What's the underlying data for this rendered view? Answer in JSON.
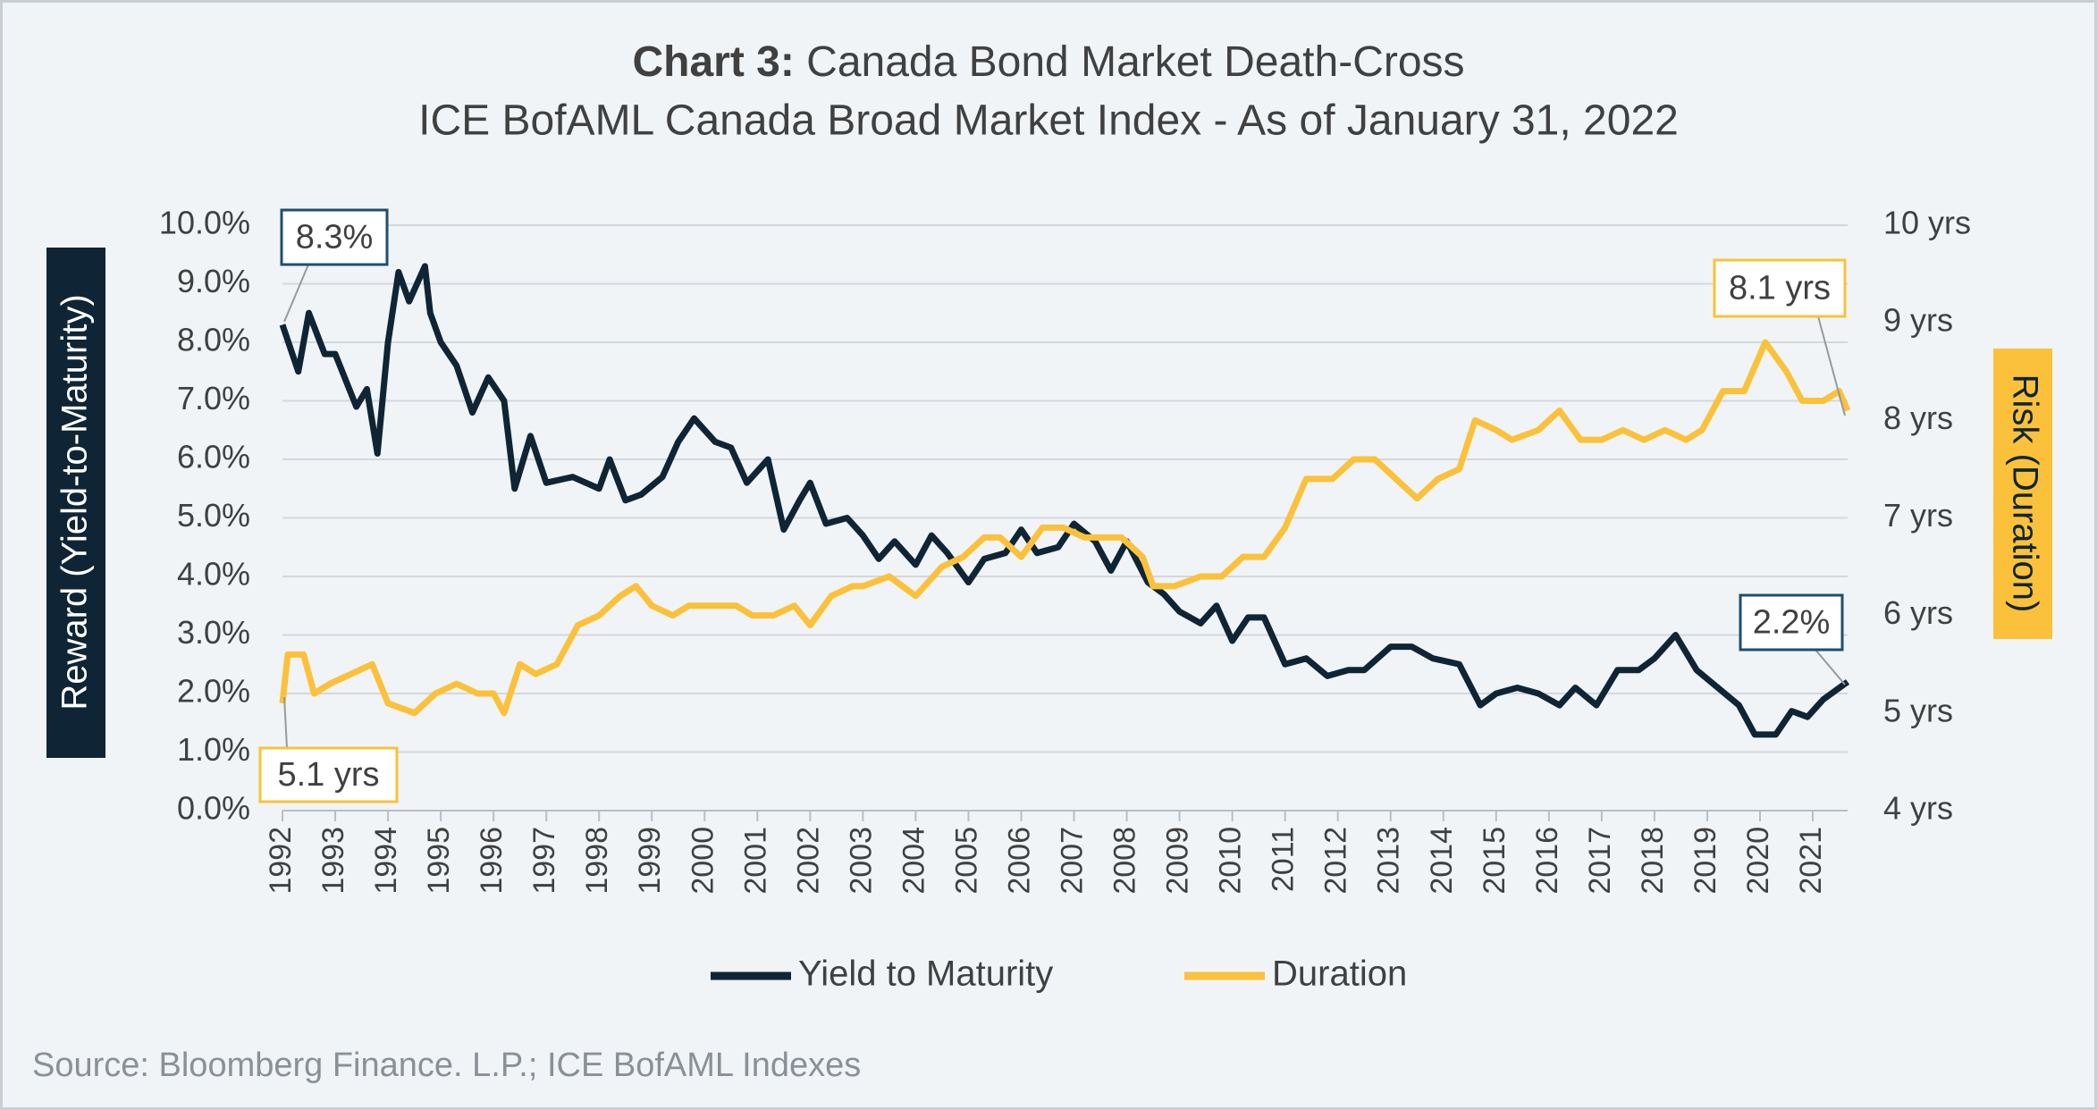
{
  "chart_data": {
    "type": "line",
    "title_bold": "Chart 3:",
    "title": "Canada Bond Market Death-Cross",
    "subtitle": "ICE BofAML Canada Broad Market Index - As of January 31, 2022",
    "ylabel": "Reward (Yield-to-Maturity)",
    "y2label": "Risk (Duration)",
    "source": "Source: Bloomberg Finance. L.P.; ICE BofAML Indexes",
    "xlim": [
      1992,
      2021.66
    ],
    "xticks": [
      1992,
      1993,
      1994,
      1995,
      1996,
      1997,
      1998,
      1999,
      2000,
      2001,
      2002,
      2003,
      2004,
      2005,
      2006,
      2007,
      2008,
      2009,
      2010,
      2011,
      2012,
      2013,
      2014,
      2015,
      2016,
      2017,
      2018,
      2019,
      2020,
      2021
    ],
    "ylim": [
      0,
      10
    ],
    "yticks": [
      {
        "value": 0,
        "label": "0.0%"
      },
      {
        "value": 1,
        "label": "1.0%"
      },
      {
        "value": 2,
        "label": "2.0%"
      },
      {
        "value": 3,
        "label": "3.0%"
      },
      {
        "value": 4,
        "label": "4.0%"
      },
      {
        "value": 5,
        "label": "5.0%"
      },
      {
        "value": 6,
        "label": "6.0%"
      },
      {
        "value": 7,
        "label": "7.0%"
      },
      {
        "value": 8,
        "label": "8.0%"
      },
      {
        "value": 9,
        "label": "9.0%"
      },
      {
        "value": 10,
        "label": "10.0%"
      }
    ],
    "y2lim": [
      4,
      10
    ],
    "y2ticks": [
      {
        "value": 4,
        "label": "4 yrs"
      },
      {
        "value": 5,
        "label": "5 yrs"
      },
      {
        "value": 6,
        "label": "6 yrs"
      },
      {
        "value": 7,
        "label": "7 yrs"
      },
      {
        "value": 8,
        "label": "8 yrs"
      },
      {
        "value": 9,
        "label": "9 yrs"
      },
      {
        "value": 10,
        "label": "10 yrs"
      }
    ],
    "grid": true,
    "legend": "bottom",
    "series": [
      {
        "name": "Yield to Maturity",
        "color": "#0f2535",
        "x": [
          1992.0,
          1992.3,
          1992.5,
          1992.8,
          1993.0,
          1993.4,
          1993.6,
          1993.8,
          1994.0,
          1994.2,
          1994.4,
          1994.7,
          1994.8,
          1995.0,
          1995.3,
          1995.6,
          1995.9,
          1996.2,
          1996.4,
          1996.7,
          1997.0,
          1997.5,
          1998.0,
          1998.2,
          1998.5,
          1998.8,
          1999.2,
          1999.5,
          1999.8,
          2000.2,
          2000.5,
          2000.8,
          2001.2,
          2001.5,
          2001.8,
          2002.0,
          2002.3,
          2002.7,
          2003.0,
          2003.3,
          2003.6,
          2004.0,
          2004.3,
          2004.6,
          2005.0,
          2005.3,
          2005.7,
          2006.0,
          2006.3,
          2006.7,
          2007.0,
          2007.4,
          2007.7,
          2008.0,
          2008.4,
          2008.7,
          2009.0,
          2009.4,
          2009.7,
          2010.0,
          2010.3,
          2010.6,
          2011.0,
          2011.4,
          2011.8,
          2012.2,
          2012.5,
          2013.0,
          2013.4,
          2013.8,
          2014.3,
          2014.7,
          2015.0,
          2015.4,
          2015.8,
          2016.2,
          2016.5,
          2016.9,
          2017.3,
          2017.7,
          2018.0,
          2018.4,
          2018.8,
          2019.2,
          2019.6,
          2019.9,
          2020.3,
          2020.6,
          2020.9,
          2021.2,
          2021.66
        ],
        "values": [
          8.3,
          7.5,
          8.5,
          7.8,
          7.8,
          6.9,
          7.2,
          6.1,
          8.0,
          9.2,
          8.7,
          9.3,
          8.5,
          8.0,
          7.6,
          6.8,
          7.4,
          7.0,
          5.5,
          6.4,
          5.6,
          5.7,
          5.5,
          6.0,
          5.3,
          5.4,
          5.7,
          6.3,
          6.7,
          6.3,
          6.2,
          5.6,
          6.0,
          4.8,
          5.3,
          5.6,
          4.9,
          5.0,
          4.7,
          4.3,
          4.6,
          4.2,
          4.7,
          4.4,
          3.9,
          4.3,
          4.4,
          4.8,
          4.4,
          4.5,
          4.9,
          4.6,
          4.1,
          4.6,
          3.9,
          3.7,
          3.4,
          3.2,
          3.5,
          2.9,
          3.3,
          3.3,
          2.5,
          2.6,
          2.3,
          2.4,
          2.4,
          2.8,
          2.8,
          2.6,
          2.5,
          1.8,
          2.0,
          2.1,
          2.0,
          1.8,
          2.1,
          1.8,
          2.4,
          2.4,
          2.6,
          3.0,
          2.4,
          2.1,
          1.8,
          1.3,
          1.3,
          1.7,
          1.6,
          1.9,
          2.2
        ]
      },
      {
        "name": "Duration",
        "color": "#fbc13a",
        "axis": "y2",
        "x": [
          1992.0,
          1992.1,
          1992.4,
          1992.6,
          1992.9,
          1993.3,
          1993.7,
          1994.0,
          1994.5,
          1994.9,
          1995.3,
          1995.7,
          1996.0,
          1996.2,
          1996.5,
          1996.8,
          1997.2,
          1997.6,
          1998.0,
          1998.4,
          1998.7,
          1999.0,
          1999.4,
          1999.7,
          2000.2,
          2000.6,
          2000.9,
          2001.3,
          2001.7,
          2002.0,
          2002.4,
          2002.8,
          2003.0,
          2003.5,
          2004.0,
          2004.5,
          2004.9,
          2005.3,
          2005.6,
          2006.0,
          2006.4,
          2006.8,
          2007.2,
          2007.5,
          2007.9,
          2008.3,
          2008.5,
          2008.9,
          2009.4,
          2009.8,
          2010.2,
          2010.6,
          2011.0,
          2011.4,
          2011.9,
          2012.3,
          2012.7,
          2013.1,
          2013.5,
          2013.9,
          2014.3,
          2014.6,
          2015.0,
          2015.3,
          2015.8,
          2016.2,
          2016.6,
          2017.0,
          2017.4,
          2017.8,
          2018.2,
          2018.6,
          2018.9,
          2019.3,
          2019.7,
          2020.1,
          2020.5,
          2020.8,
          2021.2,
          2021.5,
          2021.66
        ],
        "values": [
          5.1,
          5.6,
          5.6,
          5.2,
          5.3,
          5.4,
          5.5,
          5.1,
          5.0,
          5.2,
          5.3,
          5.2,
          5.2,
          5.0,
          5.5,
          5.4,
          5.5,
          5.9,
          6.0,
          6.2,
          6.3,
          6.1,
          6.0,
          6.1,
          6.1,
          6.1,
          6.0,
          6.0,
          6.1,
          5.9,
          6.2,
          6.3,
          6.3,
          6.4,
          6.2,
          6.5,
          6.6,
          6.8,
          6.8,
          6.6,
          6.9,
          6.9,
          6.8,
          6.8,
          6.8,
          6.6,
          6.3,
          6.3,
          6.4,
          6.4,
          6.6,
          6.6,
          6.9,
          7.4,
          7.4,
          7.6,
          7.6,
          7.4,
          7.2,
          7.4,
          7.5,
          8.0,
          7.9,
          7.8,
          7.9,
          8.1,
          7.8,
          7.8,
          7.9,
          7.8,
          7.9,
          7.8,
          7.9,
          8.3,
          8.3,
          8.8,
          8.5,
          8.2,
          8.2,
          8.3,
          8.1
        ]
      }
    ],
    "annotations": [
      "8.3%",
      "8.1 yrs",
      "2.2%",
      "5.1 yrs"
    ]
  }
}
